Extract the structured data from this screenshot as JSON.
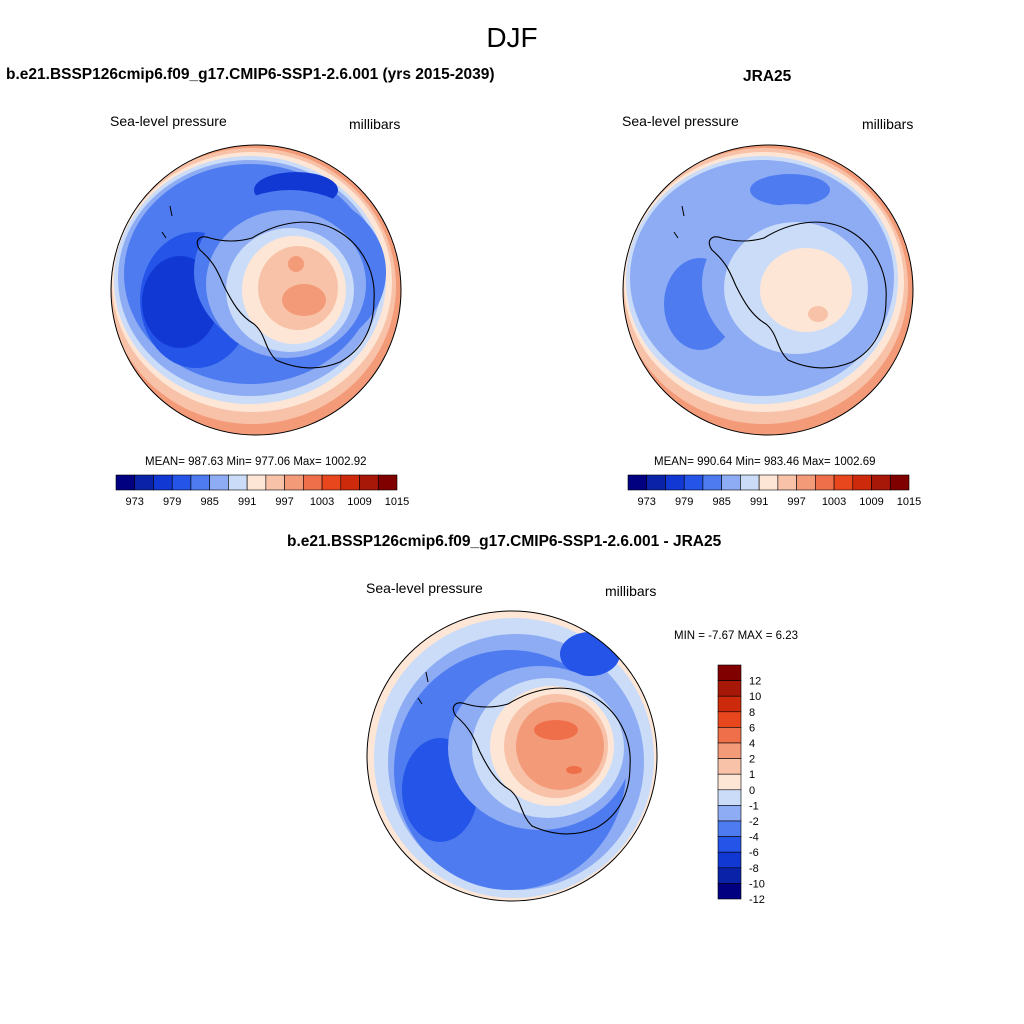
{
  "figure": {
    "title": "DJF"
  },
  "panels": [
    {
      "title": "b.e21.BSSP126cmip6.f09_g17.CMIP6-SSP1-2.6.001 (yrs 2015-2039)",
      "left_label": "Sea-level pressure",
      "right_label": "millibars",
      "stats": "MEAN= 987.63  Min= 977.06  Max= 1002.92",
      "colorbar": {
        "orientation": "horizontal",
        "levels": [
          973,
          976,
          979,
          982,
          985,
          988,
          991,
          994,
          997,
          1000,
          1003,
          1006,
          1009,
          1012,
          1015
        ],
        "tick_labels": [
          "973",
          "979",
          "985",
          "991",
          "997",
          "1003",
          "1009",
          "1015"
        ]
      }
    },
    {
      "title": "JRA25",
      "left_label": "Sea-level pressure",
      "right_label": "millibars",
      "stats": "MEAN= 990.64  Min= 983.46  Max= 1002.69",
      "colorbar": {
        "orientation": "horizontal",
        "levels": [
          973,
          976,
          979,
          982,
          985,
          988,
          991,
          994,
          997,
          1000,
          1003,
          1006,
          1009,
          1012,
          1015
        ],
        "tick_labels": [
          "973",
          "979",
          "985",
          "991",
          "997",
          "1003",
          "1009",
          "1015"
        ]
      }
    },
    {
      "title": "b.e21.BSSP126cmip6.f09_g17.CMIP6-SSP1-2.6.001 - JRA25",
      "left_label": "Sea-level pressure",
      "right_label": "millibars",
      "stats": "MIN =  -7.67 MAX =   6.23",
      "colorbar": {
        "orientation": "vertical",
        "tick_labels": [
          "12",
          "10",
          "8",
          "6",
          "4",
          "2",
          "1",
          "0",
          "-1",
          "-2",
          "-4",
          "-6",
          "-8",
          "-10",
          "-12"
        ]
      }
    }
  ],
  "palette": [
    "#000080",
    "#0a22a8",
    "#1238d4",
    "#2454e8",
    "#4e7cf0",
    "#8eacf4",
    "#cadcf8",
    "#fde6d6",
    "#f8c2a8",
    "#f39a78",
    "#ef6f4a",
    "#e8471e",
    "#cc2a0a",
    "#a81808",
    "#800000"
  ]
}
